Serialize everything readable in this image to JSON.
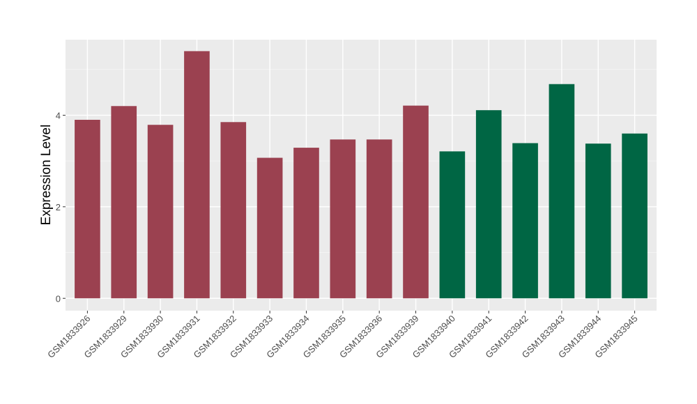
{
  "chart_data": {
    "type": "bar",
    "title": "",
    "xlabel": "",
    "ylabel": "Expression Level",
    "ylim": [
      -0.27,
      5.65
    ],
    "yticks": [
      0,
      2,
      4
    ],
    "grid": true,
    "legend": "none",
    "categories": [
      "GSM1833926",
      "GSM1833929",
      "GSM1833930",
      "GSM1833931",
      "GSM1833932",
      "GSM1833933",
      "GSM1833934",
      "GSM1833935",
      "GSM1833936",
      "GSM1833939",
      "GSM1833940",
      "GSM1833941",
      "GSM1833942",
      "GSM1833943",
      "GSM1833944",
      "GSM1833945"
    ],
    "values": [
      3.9,
      4.2,
      3.79,
      5.4,
      3.85,
      3.07,
      3.29,
      3.47,
      3.47,
      4.21,
      3.21,
      4.11,
      3.39,
      4.68,
      3.38,
      3.6
    ],
    "groups": [
      0,
      0,
      0,
      0,
      0,
      0,
      0,
      0,
      0,
      0,
      1,
      1,
      1,
      1,
      1,
      1
    ],
    "group_colors": [
      "#9b4150",
      "#006644"
    ]
  }
}
